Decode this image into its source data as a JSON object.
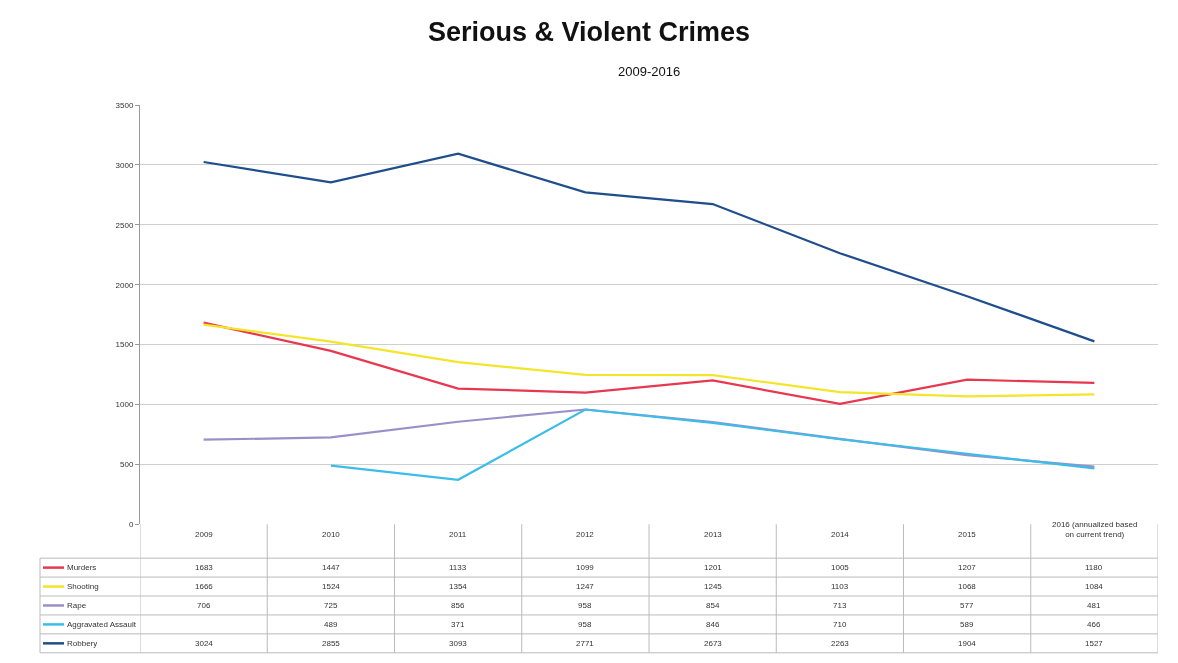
{
  "chart_data": {
    "type": "line",
    "title": "Serious & Violent Crimes",
    "subtitle": "2009-2016",
    "categories": [
      "2009",
      "2010",
      "2011",
      "2012",
      "2013",
      "2014",
      "2015",
      "2016 (annualized based on current trend)"
    ],
    "series": [
      {
        "name": "Murders",
        "color": "#e8384f",
        "values": [
          1683,
          1447,
          1133,
          1099,
          1201,
          1005,
          1207,
          1180
        ]
      },
      {
        "name": "Shooting",
        "color": "#f2e52a",
        "values": [
          1666,
          1524,
          1354,
          1247,
          1245,
          1103,
          1068,
          1084
        ]
      },
      {
        "name": "Rape",
        "color": "#9b8fc8",
        "values": [
          706,
          725,
          856,
          958,
          854,
          713,
          577,
          481
        ]
      },
      {
        "name": "Aggravated Assault",
        "color": "#3bbde8",
        "values": [
          null,
          489,
          371,
          958,
          846,
          710,
          589,
          466
        ]
      },
      {
        "name": "Robbery",
        "color": "#1f4e8c",
        "values": [
          3024,
          2855,
          3093,
          2771,
          2673,
          2263,
          1904,
          1527
        ]
      }
    ],
    "ylim": [
      0,
      3500
    ],
    "yticks": [
      0,
      500,
      1000,
      1500,
      2000,
      2500,
      3000,
      3500
    ],
    "grid": "y",
    "legend": "bottom",
    "data_labels": true,
    "marker": "none",
    "line_style": "solid"
  }
}
